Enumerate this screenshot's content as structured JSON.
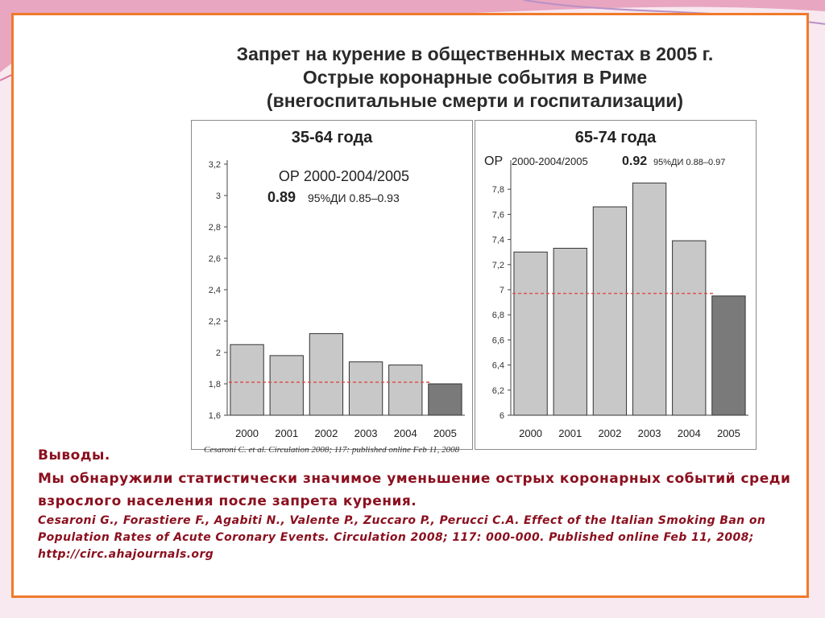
{
  "figure": {
    "title_lines": [
      "Запрет на курение в общественных местах в 2005 г.",
      "Острые коронарные события в Риме",
      "(внегоспитальные смерти и госпитализации)"
    ],
    "source_note": "Cesaroni C. et al. Circulation 2008; 117: published online Feb 11, 2008"
  },
  "chart_data": [
    {
      "type": "bar",
      "title": "35-64 года",
      "categories": [
        "2000",
        "2001",
        "2002",
        "2003",
        "2004",
        "2005"
      ],
      "values": [
        2.05,
        1.98,
        2.12,
        1.94,
        1.92,
        1.8
      ],
      "ylim": [
        1.6,
        3.2
      ],
      "yticks": [
        "1,6",
        "1,8",
        "2",
        "2,2",
        "2,4",
        "2,6",
        "2,8",
        "3",
        "3,2"
      ],
      "reference_value": 1.81,
      "annotation": {
        "line1": "ОР 2000-2004/2005",
        "value": "0.89",
        "ci": "95%ДИ 0.85–0.93"
      },
      "bar_colors": {
        "default": "#c8c8c8",
        "highlight": "#7a7a7a"
      }
    },
    {
      "type": "bar",
      "title": "65-74 года",
      "categories": [
        "2000",
        "2001",
        "2002",
        "2003",
        "2004",
        "2005"
      ],
      "values": [
        7.3,
        7.33,
        7.66,
        7.85,
        7.39,
        6.95
      ],
      "ylim": [
        6.0,
        8.0
      ],
      "yticks": [
        "6",
        "6,2",
        "6,4",
        "6,6",
        "6,8",
        "7",
        "7,2",
        "7,4",
        "7,6",
        "7,8"
      ],
      "reference_value": 6.97,
      "annotation": {
        "prefix": "ОР",
        "line1": "2000-2004/2005",
        "value": "0.92",
        "ci": "95%ДИ 0.88–0.97"
      },
      "bar_colors": {
        "default": "#c8c8c8",
        "highlight": "#7a7a7a"
      }
    }
  ],
  "conclusions": {
    "heading": "Выводы.",
    "body": "Мы обнаружили статистически значимое уменьшение острых коронарных событий среди взрослого населения после запрета курения.",
    "reference": "Cesaroni G., Forastiere F., Agabiti N., Valente P., Zuccaro P., Perucci C.A. Effect of the Italian Smoking Ban on Population Rates of Acute Coronary Events. Circulation 2008; 117: 000-000. Published online Feb 11, 2008; http://circ.ahajournals.org"
  },
  "colors": {
    "frame_border": "#f07a2a",
    "conclusion_text": "#8b0f1e",
    "reference_line": "#d9534f"
  }
}
